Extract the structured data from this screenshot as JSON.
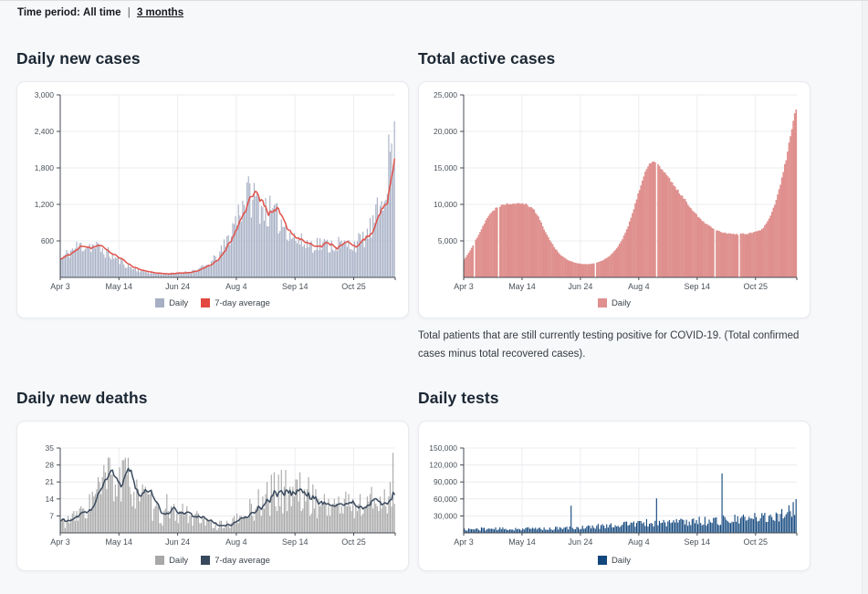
{
  "page": {
    "time_period_label": "Time period:",
    "time_period_current": "All time",
    "divider": "|",
    "time_period_link": "3 months"
  },
  "chart_data": [
    {
      "id": "daily-new-cases",
      "type": "bar",
      "title": "Daily new cases",
      "x_tick_labels": [
        "Apr 3",
        "May 14",
        "Jun 24",
        "Aug 4",
        "Sep 14",
        "Oct 25"
      ],
      "x_tick_days": [
        0,
        41,
        82,
        123,
        164,
        205
      ],
      "n_days": 234,
      "ylim": [
        0,
        3000
      ],
      "y_ticks": [
        600,
        1200,
        1800,
        2400,
        3000
      ],
      "legend": [
        {
          "label": "Daily",
          "color": "#a6afc4"
        },
        {
          "label": "7-day average",
          "color": "#e2483f"
        }
      ],
      "bar_color": "#a6afc4",
      "line_color": "#e0524a",
      "bar_jitter": 0.27,
      "seed": 11,
      "has_line": true,
      "style": "bars",
      "spikes": [],
      "gaps": [],
      "trend_anchors": [
        [
          0,
          300
        ],
        [
          6,
          420
        ],
        [
          12,
          510
        ],
        [
          18,
          540
        ],
        [
          24,
          505
        ],
        [
          30,
          440
        ],
        [
          36,
          350
        ],
        [
          43,
          240
        ],
        [
          50,
          150
        ],
        [
          57,
          100
        ],
        [
          64,
          72
        ],
        [
          72,
          60
        ],
        [
          80,
          65
        ],
        [
          87,
          85
        ],
        [
          94,
          120
        ],
        [
          100,
          170
        ],
        [
          106,
          260
        ],
        [
          112,
          420
        ],
        [
          117,
          640
        ],
        [
          121,
          880
        ],
        [
          125,
          1130
        ],
        [
          129,
          1320
        ],
        [
          132,
          1360
        ],
        [
          136,
          1290
        ],
        [
          140,
          1180
        ],
        [
          146,
          1060
        ],
        [
          152,
          950
        ],
        [
          158,
          820
        ],
        [
          163,
          650
        ],
        [
          167,
          580
        ],
        [
          173,
          550
        ],
        [
          180,
          555
        ],
        [
          187,
          525
        ],
        [
          193,
          555
        ],
        [
          199,
          530
        ],
        [
          205,
          555
        ],
        [
          210,
          600
        ],
        [
          214,
          700
        ],
        [
          218,
          850
        ],
        [
          222,
          1100
        ],
        [
          226,
          1500
        ],
        [
          229,
          1900
        ],
        [
          231,
          2120
        ],
        [
          233,
          2080
        ]
      ]
    },
    {
      "id": "total-active-cases",
      "type": "bar",
      "title": "Total active cases",
      "caption": "Total patients that are still currently testing positive for COVID-19. (Total confirmed cases minus total recovered cases).",
      "x_tick_labels": [
        "Apr 3",
        "May 14",
        "Jun 24",
        "Aug 4",
        "Sep 14",
        "Oct 25"
      ],
      "x_tick_days": [
        0,
        41,
        82,
        123,
        164,
        205
      ],
      "n_days": 234,
      "ylim": [
        0,
        25000
      ],
      "y_ticks": [
        5000,
        10000,
        15000,
        20000,
        25000
      ],
      "legend": [
        {
          "label": "Daily",
          "color": "#df908e"
        }
      ],
      "bar_color": "#df908e",
      "line_color": null,
      "bar_jitter": 0.015,
      "seed": 22,
      "has_line": false,
      "style": "area",
      "spikes": [],
      "gaps": [
        7,
        24,
        92,
        135,
        176,
        193
      ],
      "trend_anchors": [
        [
          0,
          2500
        ],
        [
          5,
          4000
        ],
        [
          10,
          5900
        ],
        [
          16,
          8200
        ],
        [
          22,
          9500
        ],
        [
          27,
          10000
        ],
        [
          33,
          10150
        ],
        [
          40,
          10250
        ],
        [
          44,
          9950
        ],
        [
          48,
          9500
        ],
        [
          52,
          8300
        ],
        [
          56,
          6600
        ],
        [
          60,
          5100
        ],
        [
          64,
          3900
        ],
        [
          68,
          3000
        ],
        [
          72,
          2450
        ],
        [
          77,
          2050
        ],
        [
          82,
          1850
        ],
        [
          87,
          1800
        ],
        [
          92,
          1950
        ],
        [
          97,
          2300
        ],
        [
          102,
          2950
        ],
        [
          107,
          3950
        ],
        [
          111,
          5300
        ],
        [
          115,
          7000
        ],
        [
          119,
          9300
        ],
        [
          123,
          12100
        ],
        [
          127,
          14400
        ],
        [
          130,
          15500
        ],
        [
          133,
          16000
        ],
        [
          136,
          15400
        ],
        [
          139,
          14700
        ],
        [
          143,
          13700
        ],
        [
          148,
          12400
        ],
        [
          153,
          11100
        ],
        [
          158,
          9800
        ],
        [
          163,
          8600
        ],
        [
          167,
          7800
        ],
        [
          171,
          7200
        ],
        [
          175,
          6700
        ],
        [
          179,
          6350
        ],
        [
          183,
          6100
        ],
        [
          188,
          5950
        ],
        [
          193,
          5900
        ],
        [
          198,
          6000
        ],
        [
          202,
          6100
        ],
        [
          206,
          6300
        ],
        [
          209,
          6600
        ],
        [
          212,
          7300
        ],
        [
          215,
          8400
        ],
        [
          218,
          10000
        ],
        [
          221,
          12000
        ],
        [
          224,
          14400
        ],
        [
          227,
          17200
        ],
        [
          230,
          20400
        ],
        [
          232,
          22300
        ],
        [
          233,
          23200
        ]
      ]
    },
    {
      "id": "daily-new-deaths",
      "type": "bar",
      "title": "Daily new deaths",
      "x_tick_labels": [
        "Apr 3",
        "May 14",
        "Jun 24",
        "Aug 4",
        "Sep 14",
        "Oct 25"
      ],
      "x_tick_days": [
        0,
        41,
        82,
        123,
        164,
        205
      ],
      "n_days": 234,
      "ylim": [
        0,
        35
      ],
      "y_ticks": [
        7,
        14,
        21,
        28,
        35
      ],
      "legend": [
        {
          "label": "Daily",
          "color": "#a8a8a8"
        },
        {
          "label": "7-day average",
          "color": "#37485c"
        }
      ],
      "bar_color": "#a8a8a8",
      "line_color": "#3a4a5e",
      "bar_jitter": 0.55,
      "seed": 33,
      "has_line": true,
      "style": "bars",
      "integer": true,
      "spikes": [
        [
          74,
          16
        ],
        [
          232,
          33
        ]
      ],
      "gaps": [],
      "trend_anchors": [
        [
          0,
          5
        ],
        [
          4,
          5
        ],
        [
          8,
          6
        ],
        [
          12,
          7
        ],
        [
          16,
          9
        ],
        [
          20,
          12
        ],
        [
          24,
          15
        ],
        [
          28,
          18
        ],
        [
          32,
          21
        ],
        [
          35,
          23
        ],
        [
          38,
          22
        ],
        [
          41,
          20
        ],
        [
          44,
          21
        ],
        [
          47,
          22
        ],
        [
          50,
          21
        ],
        [
          53,
          19
        ],
        [
          56,
          16
        ],
        [
          60,
          13
        ],
        [
          64,
          10
        ],
        [
          68,
          8
        ],
        [
          72,
          7
        ],
        [
          76,
          7
        ],
        [
          80,
          8
        ],
        [
          84,
          9
        ],
        [
          88,
          8
        ],
        [
          92,
          6.5
        ],
        [
          96,
          5.5
        ],
        [
          100,
          4.5
        ],
        [
          104,
          4
        ],
        [
          108,
          3.2
        ],
        [
          112,
          3
        ],
        [
          116,
          3.5
        ],
        [
          120,
          4.5
        ],
        [
          124,
          5.5
        ],
        [
          128,
          7
        ],
        [
          132,
          9
        ],
        [
          136,
          11
        ],
        [
          140,
          13
        ],
        [
          144,
          15
        ],
        [
          148,
          16
        ],
        [
          152,
          17
        ],
        [
          156,
          17.5
        ],
        [
          160,
          17.8
        ],
        [
          164,
          17
        ],
        [
          168,
          16
        ],
        [
          172,
          15
        ],
        [
          176,
          14
        ],
        [
          180,
          13
        ],
        [
          184,
          12
        ],
        [
          188,
          11.2
        ],
        [
          192,
          11
        ],
        [
          196,
          11.5
        ],
        [
          200,
          12
        ],
        [
          204,
          11.5
        ],
        [
          208,
          11
        ],
        [
          212,
          11.5
        ],
        [
          216,
          12.5
        ],
        [
          220,
          13
        ],
        [
          224,
          13.5
        ],
        [
          228,
          14.5
        ],
        [
          231,
          15.5
        ],
        [
          233,
          17
        ]
      ]
    },
    {
      "id": "daily-tests",
      "type": "bar",
      "title": "Daily tests",
      "x_tick_labels": [
        "Apr 3",
        "May 14",
        "Jun 24",
        "Aug 4",
        "Sep 14",
        "Oct 25"
      ],
      "x_tick_days": [
        0,
        41,
        82,
        123,
        164,
        205
      ],
      "n_days": 234,
      "ylim": [
        0,
        150000
      ],
      "y_ticks": [
        30000,
        60000,
        90000,
        120000,
        150000
      ],
      "legend": [
        {
          "label": "Daily",
          "color": "#12477d"
        }
      ],
      "bar_color": "#12477d",
      "line_color": null,
      "bar_jitter": 0.42,
      "seed": 44,
      "has_line": false,
      "style": "bars",
      "spikes": [
        [
          75,
          48000
        ],
        [
          135,
          61000
        ],
        [
          181,
          105000
        ]
      ],
      "gaps": [],
      "trend_anchors": [
        [
          0,
          6000
        ],
        [
          10,
          6800
        ],
        [
          20,
          7200
        ],
        [
          30,
          6600
        ],
        [
          40,
          7000
        ],
        [
          50,
          7600
        ],
        [
          60,
          7200
        ],
        [
          70,
          8200
        ],
        [
          80,
          9200
        ],
        [
          88,
          10200
        ],
        [
          96,
          12000
        ],
        [
          104,
          13800
        ],
        [
          112,
          15200
        ],
        [
          120,
          16400
        ],
        [
          128,
          17200
        ],
        [
          136,
          17600
        ],
        [
          144,
          18400
        ],
        [
          152,
          19200
        ],
        [
          160,
          20200
        ],
        [
          168,
          21000
        ],
        [
          176,
          21400
        ],
        [
          184,
          22200
        ],
        [
          192,
          23000
        ],
        [
          200,
          24400
        ],
        [
          208,
          27000
        ],
        [
          216,
          30000
        ],
        [
          222,
          33000
        ],
        [
          227,
          38000
        ],
        [
          231,
          43000
        ],
        [
          233,
          46000
        ]
      ]
    }
  ]
}
